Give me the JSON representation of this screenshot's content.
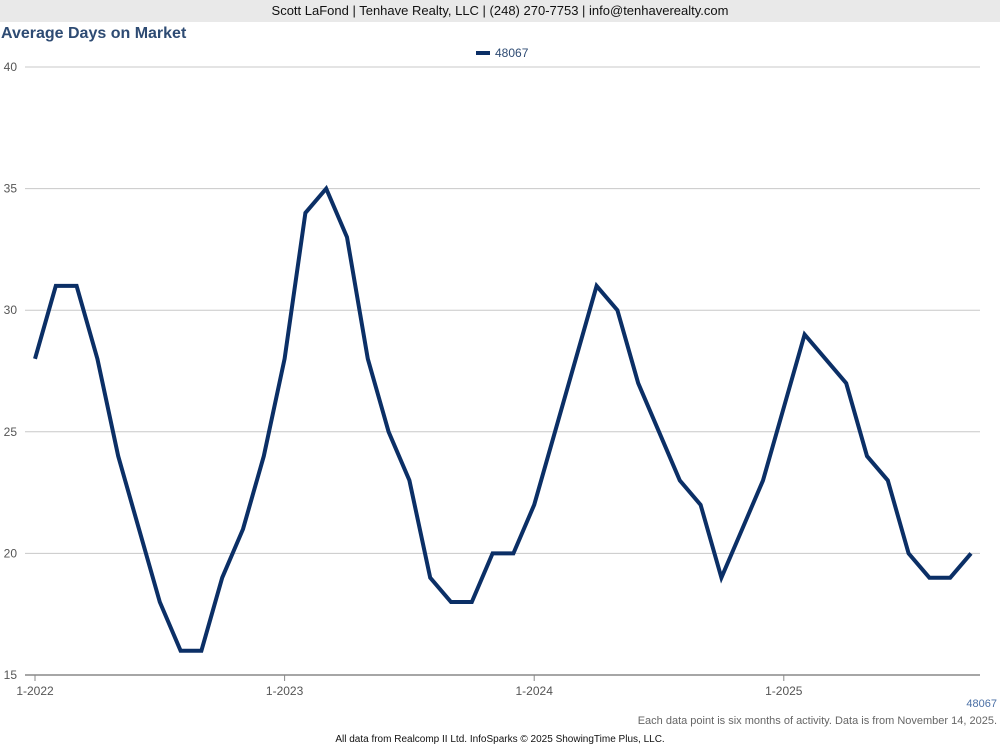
{
  "header": {
    "contact": "Scott LaFond | Tenhave Realty, LLC | (248) 270-7753 | info@tenhaverealty.com"
  },
  "colors": {
    "series": "#0b2f66",
    "grid": "#c8c8c8",
    "axis": "#888888",
    "title": "#2e4b73"
  },
  "chart_data": {
    "type": "line",
    "title": "Average Days on Market",
    "ylim": [
      15,
      40
    ],
    "yticks": [
      15,
      20,
      25,
      30,
      35,
      40
    ],
    "xticks": [
      "1-2022",
      "1-2023",
      "1-2024",
      "1-2025"
    ],
    "x_start": "1-2022",
    "x_step": "1 month",
    "grid": true,
    "legend": "top-center",
    "series": [
      {
        "name": "48067",
        "values": [
          28,
          31,
          31,
          28,
          24,
          21,
          18,
          16,
          16,
          19,
          21,
          24,
          28,
          34,
          35,
          33,
          28,
          25,
          23,
          19,
          18,
          18,
          20,
          20,
          22,
          25,
          28,
          31,
          30,
          27,
          25,
          23,
          22,
          19,
          21,
          23,
          26,
          29,
          28,
          27,
          24,
          23,
          20,
          19,
          19,
          20
        ]
      }
    ],
    "end_label": "48067"
  },
  "notes": {
    "interval": "Each data point is six months of activity. Data is from November 14, 2025.",
    "footer": "All data from Realcomp II Ltd. InfoSparks © 2025 ShowingTime Plus, LLC."
  }
}
